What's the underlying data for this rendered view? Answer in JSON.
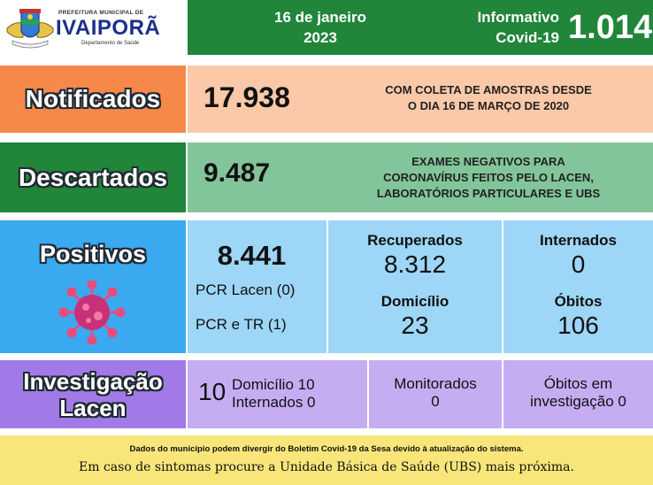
{
  "header": {
    "prefeitura": "PREFEITURA MUNICIPAL DE",
    "city": "IVAIPORÃ",
    "department": "Departamento de Saúde",
    "date_line1": "16 de janeiro",
    "date_line2": "2023",
    "info_line1": "Informativo",
    "info_line2": "Covid-19",
    "bulletin_number": "1.014"
  },
  "notificados": {
    "label": "Notificados",
    "value": "17.938",
    "note_line1": "COM COLETA DE AMOSTRAS DESDE",
    "note_line2": "O DIA 16 DE MARÇO DE 2020"
  },
  "descartados": {
    "label": "Descartados",
    "value": "9.487",
    "note_line1": "EXAMES NEGATIVOS PARA",
    "note_line2": "CORONAVÍRUS FEITOS PELO LACEN,",
    "note_line3": "LABORATÓRIOS PARTICULARES E UBS"
  },
  "positivos": {
    "label": "Positivos",
    "value": "8.441",
    "pcr_lacen": "PCR Lacen (0)",
    "pcr_tr": "PCR e TR (1)",
    "recuperados_label": "Recuperados",
    "recuperados_value": "8.312",
    "domicilio_label": "Domicílio",
    "domicilio_value": "23",
    "internados_label": "Internados",
    "internados_value": "0",
    "obitos_label": "Óbitos",
    "obitos_value": "106"
  },
  "investigacao": {
    "label_line1": "Investigação",
    "label_line2": "Lacen",
    "total": "10",
    "domicilio": "Domicílio 10",
    "internados": "Internados 0",
    "monitorados_label": "Monitorados",
    "monitorados_value": "0",
    "obitos_label_line1": "Óbitos em",
    "obitos_label_line2": "investigação 0"
  },
  "footer": {
    "disclaimer": "Dados do município podem divergir do Boletim Covid-19 da Sesa devido à atualização do sistema.",
    "advice": "Em caso de sintomas procure a Unidade Básica de Saúde (UBS) mais próxima."
  },
  "colors": {
    "green": "#21853a",
    "orange": "#f6894a",
    "peach": "#fbc9a8",
    "light_green": "#82c59a",
    "blue": "#3aa9ef",
    "light_blue": "#9dd6f7",
    "purple": "#a17ae8",
    "light_purple": "#c6adf2",
    "yellow": "#f9e67a"
  }
}
